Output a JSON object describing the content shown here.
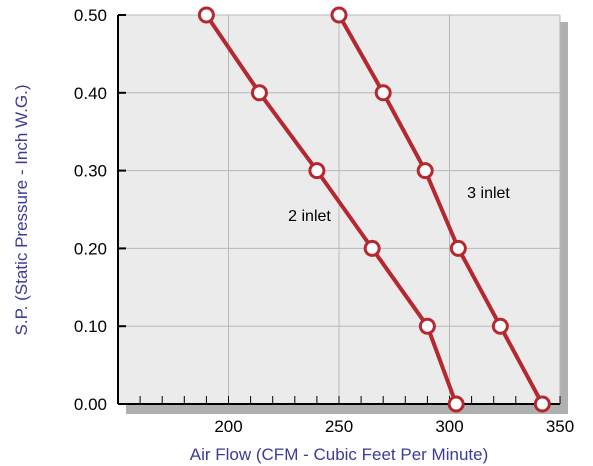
{
  "chart_data": {
    "type": "line",
    "xlabel": "Air Flow (CFM - Cubic Feet Per Minute)",
    "ylabel": "S.P. (Static Pressure - Inch W.G.)",
    "xlim": [
      150,
      350
    ],
    "ylim": [
      0,
      0.5
    ],
    "x_ticks": [
      "200",
      "250",
      "300",
      "350"
    ],
    "y_ticks": [
      "0.00",
      "0.10",
      "0.20",
      "0.30",
      "0.40",
      "0.50"
    ],
    "grid": true,
    "series": [
      {
        "name": "2 inlet",
        "color": "#b5282f",
        "points": [
          [
            190,
            0.5
          ],
          [
            214,
            0.4
          ],
          [
            240,
            0.3
          ],
          [
            265,
            0.2
          ],
          [
            290,
            0.1
          ],
          [
            303,
            0.0
          ]
        ]
      },
      {
        "name": "3 inlet",
        "color": "#b5282f",
        "points": [
          [
            250,
            0.5
          ],
          [
            270,
            0.4
          ],
          [
            289,
            0.3
          ],
          [
            304,
            0.2
          ],
          [
            323,
            0.1
          ],
          [
            342,
            0.0
          ]
        ]
      }
    ],
    "colors": {
      "axis_title": "#3b3b9a",
      "grid": "#b8b8b8",
      "plot_bg": "#ebebeb",
      "shadow": "#b0b0b0"
    }
  }
}
